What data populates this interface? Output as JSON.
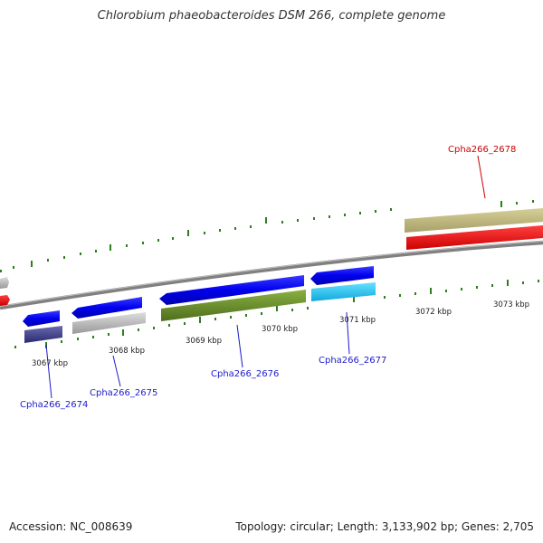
{
  "title": "Chlorobium phaeobacteroides DSM 266, complete genome",
  "accession": "Accession: NC_008639",
  "topology": "Topology: circular; Length: 3,133,902 bp; Genes: 2,705",
  "colors": {
    "blue_label": "#1a1acc",
    "red_label": "#cc0000",
    "tick": "#2e7d1e",
    "backbone": "#808080"
  },
  "ticks": [
    "3067 kbp",
    "3068 kbp",
    "3069 kbp",
    "3070 kbp",
    "3071 kbp",
    "3072 kbp",
    "3073 kbp"
  ],
  "genes": [
    {
      "label": "Cpha266_2674",
      "color": "blue"
    },
    {
      "label": "Cpha266_2675",
      "color": "blue"
    },
    {
      "label": "Cpha266_2676",
      "color": "blue"
    },
    {
      "label": "Cpha266_2677",
      "color": "blue"
    },
    {
      "label": "Cpha266_2678",
      "color": "red"
    }
  ]
}
